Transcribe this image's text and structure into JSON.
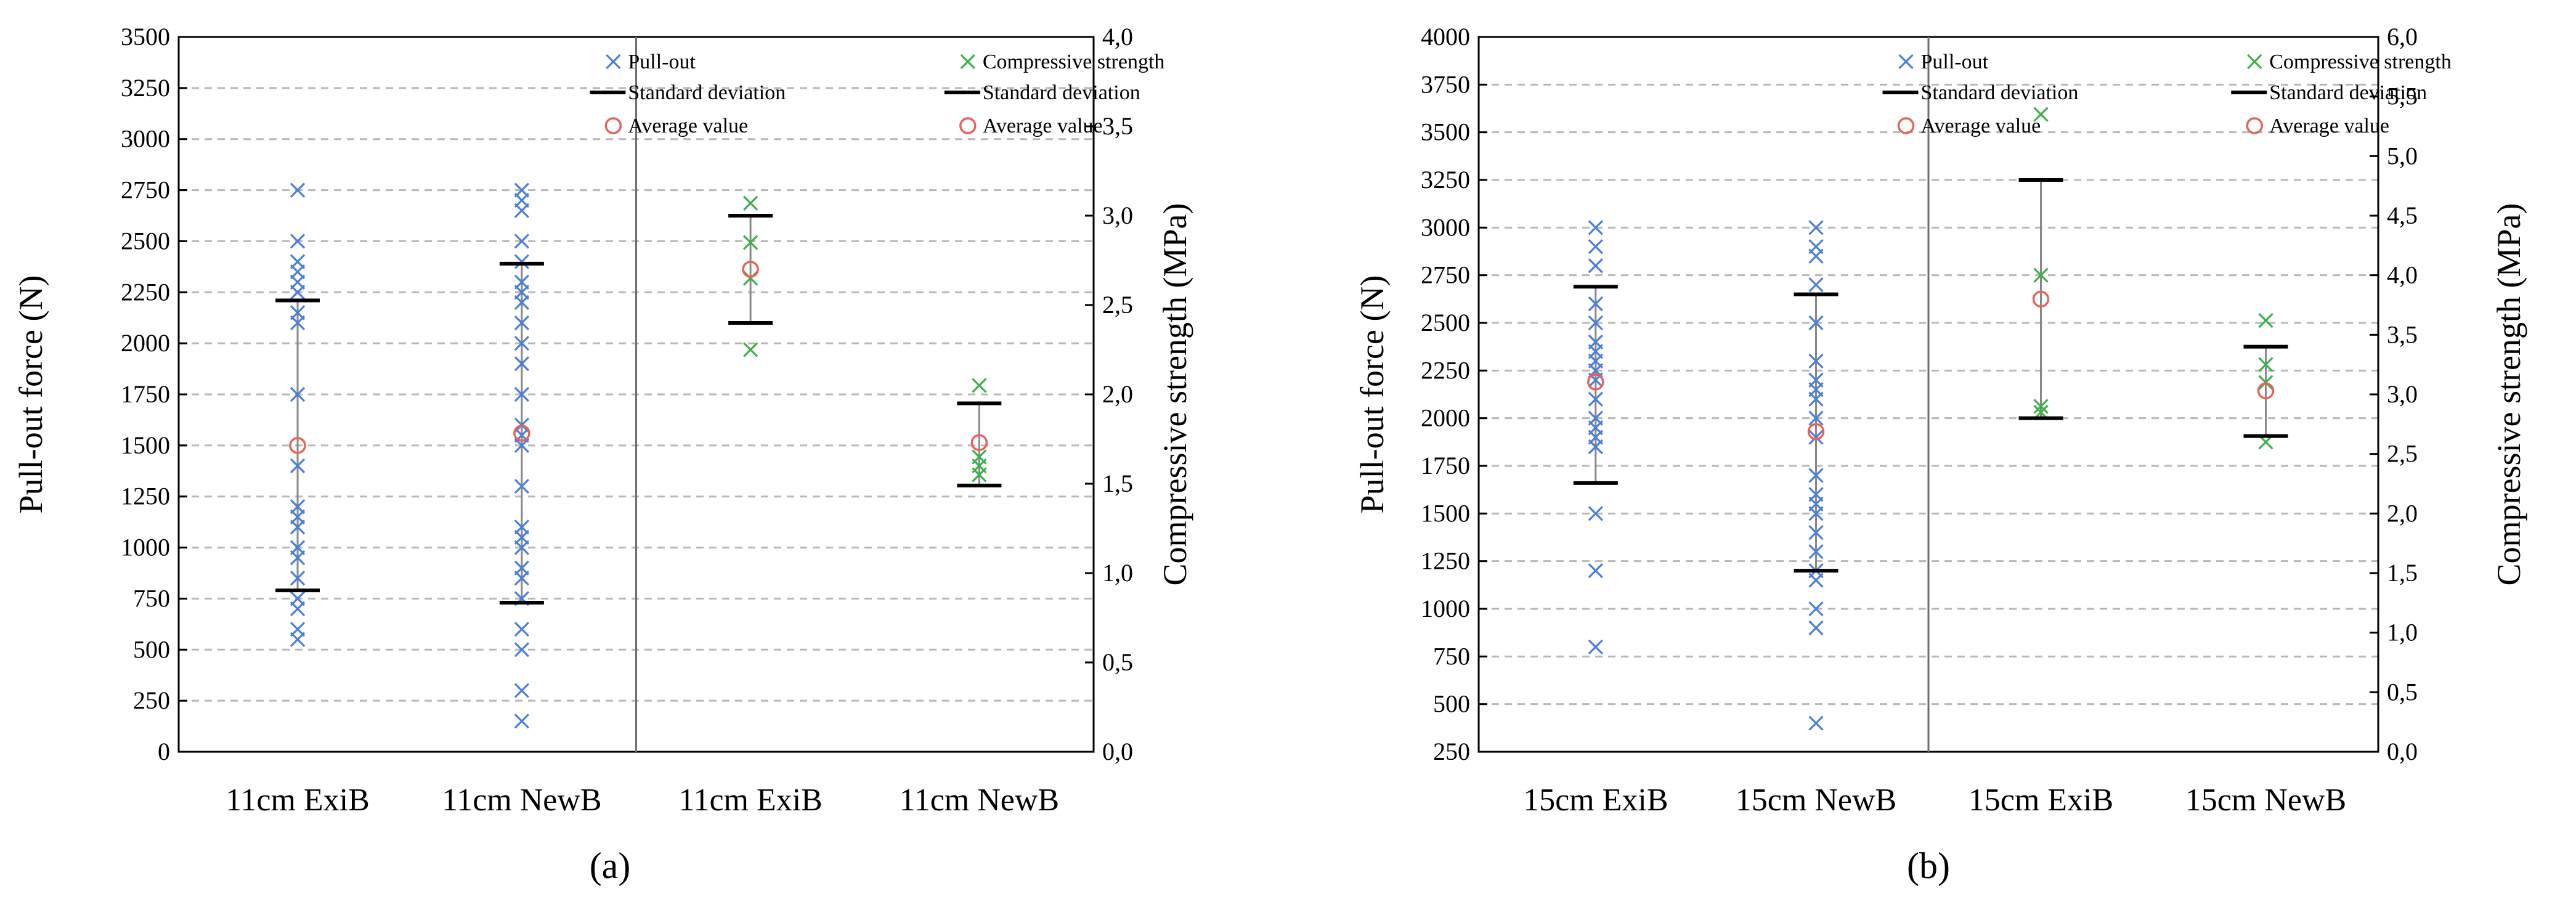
{
  "colors": {
    "pullout": "#4a7fd6",
    "compressive": "#3bb04a",
    "average": "#e8625a",
    "stddev": "#000000",
    "errbar": "#888888",
    "grid": "#b8b8b8",
    "divider": "#6e6e6e"
  },
  "chart_data": [
    {
      "type": "scatter",
      "panel_label": "(a)",
      "ylabel_left": "Pull-out force (N)",
      "ylabel_right": "Compressive strength (MPa)",
      "ylim_left": [
        0,
        3500
      ],
      "ylim_right": [
        0,
        4.0
      ],
      "yticks_left": [
        "0",
        "250",
        "500",
        "750",
        "1000",
        "1250",
        "1500",
        "1750",
        "2000",
        "2250",
        "2500",
        "2750",
        "3000",
        "3250",
        "3500"
      ],
      "yticks_right": [
        "0,0",
        "0,5",
        "1,0",
        "1,5",
        "2,0",
        "2,5",
        "3,0",
        "3,5",
        "4,0"
      ],
      "categories": [
        "11cm ExiB",
        "11cm NewB",
        "11cm ExiB",
        "11cm NewB"
      ],
      "legend_left": [
        "Pull-out",
        "Standard deviation",
        "Average value"
      ],
      "legend_right": [
        "Compressive strength",
        "Standard deviation",
        "Average value"
      ],
      "grid": true,
      "groups": [
        {
          "category": "11cm ExiB",
          "axis": "left",
          "series": "Pull-out",
          "points": [
            550,
            600,
            700,
            750,
            850,
            950,
            1000,
            1100,
            1150,
            1200,
            1400,
            1750,
            2100,
            2150,
            2250,
            2300,
            2350,
            2400,
            2500,
            2750
          ],
          "mean": 1500,
          "sd_low": 790,
          "sd_high": 2210
        },
        {
          "category": "11cm NewB",
          "axis": "left",
          "series": "Pull-out",
          "points": [
            150,
            300,
            500,
            600,
            750,
            850,
            900,
            1000,
            1050,
            1100,
            1300,
            1500,
            1550,
            1600,
            1750,
            1900,
            2000,
            2100,
            2200,
            2250,
            2300,
            2400,
            2500,
            2650,
            2700,
            2750
          ],
          "mean": 1560,
          "sd_low": 730,
          "sd_high": 2390
        },
        {
          "category": "11cm ExiB",
          "axis": "right",
          "series": "Compressive strength",
          "points": [
            2.25,
            2.65,
            2.85,
            3.07
          ],
          "mean": 2.7,
          "sd_low": 2.4,
          "sd_high": 3.0
        },
        {
          "category": "11cm NewB",
          "axis": "right",
          "series": "Compressive strength",
          "points": [
            1.55,
            1.6,
            1.65,
            2.05
          ],
          "mean": 1.73,
          "sd_low": 1.49,
          "sd_high": 1.95
        }
      ]
    },
    {
      "type": "scatter",
      "panel_label": "(b)",
      "ylabel_left": "Pull-out force (N)",
      "ylabel_right": "Compressive strength (MPa)",
      "ylim_left": [
        250,
        4000
      ],
      "ylim_right": [
        0,
        6.0
      ],
      "yticks_left": [
        "250",
        "500",
        "750",
        "1000",
        "1250",
        "1500",
        "1750",
        "2000",
        "2250",
        "2500",
        "2750",
        "3000",
        "3250",
        "3500",
        "3750",
        "4000"
      ],
      "yticks_right": [
        "0,0",
        "0,5",
        "1,0",
        "1,5",
        "2,0",
        "2,5",
        "3,0",
        "3,5",
        "4,0",
        "4,5",
        "5,0",
        "5,5",
        "6,0"
      ],
      "categories": [
        "15cm ExiB",
        "15cm NewB",
        "15cm ExiB",
        "15cm NewB"
      ],
      "legend_left": [
        "Pull-out",
        "Standard deviation",
        "Average value"
      ],
      "legend_right": [
        "Compressive strength",
        "Standard deviation",
        "Average value"
      ],
      "grid": true,
      "groups": [
        {
          "category": "15cm ExiB",
          "axis": "left",
          "series": "Pull-out",
          "points": [
            800,
            1200,
            1500,
            1850,
            1900,
            1950,
            2000,
            2100,
            2200,
            2250,
            2300,
            2350,
            2400,
            2500,
            2600,
            2800,
            2900,
            3000
          ],
          "mean": 2190,
          "sd_low": 1660,
          "sd_high": 2690
        },
        {
          "category": "15cm NewB",
          "axis": "left",
          "series": "Pull-out",
          "points": [
            400,
            900,
            1000,
            1150,
            1200,
            1300,
            1400,
            1500,
            1550,
            1600,
            1700,
            1900,
            2000,
            2100,
            2150,
            2200,
            2300,
            2500,
            2700,
            2850,
            2900,
            3000
          ],
          "mean": 1930,
          "sd_low": 1200,
          "sd_high": 2650
        },
        {
          "category": "15cm ExiB",
          "axis": "right",
          "series": "Compressive strength",
          "points": [
            2.85,
            2.9,
            4.0,
            5.35
          ],
          "mean": 3.8,
          "sd_low": 2.8,
          "sd_high": 4.8
        },
        {
          "category": "15cm NewB",
          "axis": "right",
          "series": "Compressive strength",
          "points": [
            2.6,
            3.1,
            3.25,
            3.62
          ],
          "mean": 3.03,
          "sd_low": 2.65,
          "sd_high": 3.4
        }
      ]
    }
  ]
}
